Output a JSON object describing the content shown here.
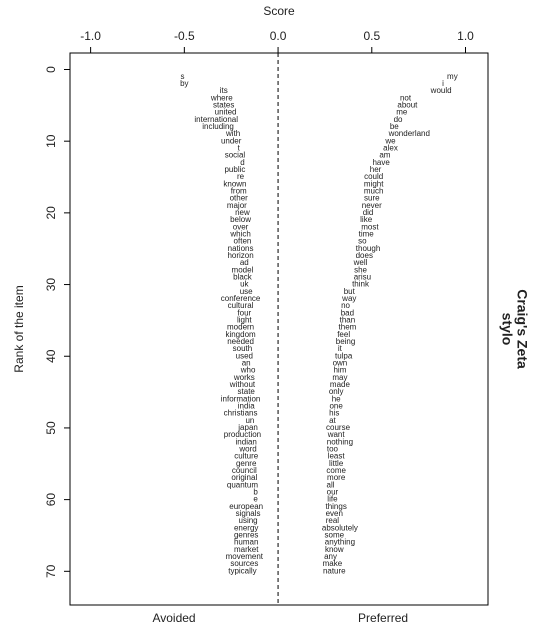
{
  "chart_data": {
    "type": "word-scatter",
    "title": "Craig's Zeta",
    "caption": "stylo",
    "xlabel": "Score",
    "ylabel": "Rank of the item",
    "xlim": [
      -1.11,
      1.12
    ],
    "ylim": [
      -2.3,
      74.7
    ],
    "y_reversed": true,
    "zero_line": true,
    "xticks": [
      {
        "value": -1,
        "label": "-1.0"
      },
      -0.5,
      {
        "value": 0,
        "label": "0.0"
      },
      0.5,
      {
        "value": 1,
        "label": "1.0"
      }
    ],
    "yticks": [
      0,
      10,
      20,
      30,
      40,
      50,
      60,
      70
    ],
    "series": [
      {
        "name": "Avoided",
        "color": "#000000",
        "words": [
          "s",
          "by",
          "its",
          "where",
          "states",
          "united",
          "international",
          "including",
          "with",
          "under",
          "t",
          "social",
          "d",
          "public",
          "re",
          "known",
          "from",
          "other",
          "major",
          "new",
          "below",
          "over",
          "which",
          "often",
          "nations",
          "horizon",
          "ad",
          "model",
          "black",
          "uk",
          "use",
          "conference",
          "cultural",
          "four",
          "light",
          "modern",
          "kingdom",
          "needed",
          "south",
          "used",
          "an",
          "who",
          "works",
          "without",
          "state",
          "information",
          "india",
          "christians",
          "un",
          "japan",
          "production",
          "indian",
          "word",
          "culture",
          "genre",
          "council",
          "original",
          "quantum",
          "b",
          "e",
          "european",
          "signals",
          "using",
          "energy",
          "genres",
          "human",
          "market",
          "movement",
          "sources",
          "typically"
        ],
        "x": [
          -0.51,
          -0.5,
          -0.29,
          -0.3,
          -0.29,
          -0.28,
          -0.33,
          -0.32,
          -0.24,
          -0.25,
          -0.21,
          -0.23,
          -0.19,
          -0.23,
          -0.2,
          -0.23,
          -0.21,
          -0.21,
          -0.22,
          -0.19,
          -0.2,
          -0.2,
          -0.2,
          -0.19,
          -0.2,
          -0.2,
          -0.18,
          -0.19,
          -0.19,
          -0.18,
          -0.17,
          -0.2,
          -0.2,
          -0.18,
          -0.18,
          -0.2,
          -0.2,
          -0.2,
          -0.19,
          -0.18,
          -0.17,
          -0.16,
          -0.18,
          -0.19,
          -0.17,
          -0.2,
          -0.17,
          -0.2,
          -0.15,
          -0.16,
          -0.19,
          -0.17,
          -0.16,
          -0.17,
          -0.17,
          -0.18,
          -0.18,
          -0.19,
          -0.12,
          -0.12,
          -0.17,
          -0.16,
          -0.16,
          -0.17,
          -0.17,
          -0.17,
          -0.17,
          -0.18,
          -0.18,
          -0.19
        ],
        "y": [
          1,
          2,
          3,
          4,
          5,
          6,
          7,
          8,
          9,
          10,
          11,
          12,
          13,
          14,
          15,
          16,
          17,
          18,
          19,
          20,
          21,
          22,
          23,
          24,
          25,
          26,
          27,
          28,
          29,
          30,
          31,
          32,
          33,
          34,
          35,
          36,
          37,
          38,
          39,
          40,
          41,
          42,
          43,
          44,
          45,
          46,
          47,
          48,
          49,
          50,
          51,
          52,
          53,
          54,
          55,
          56,
          57,
          58,
          59,
          60,
          61,
          62,
          63,
          64,
          65,
          66,
          67,
          68,
          69,
          70
        ]
      },
      {
        "name": "Preferred",
        "color": "#000000",
        "words": [
          "my",
          "i",
          "would",
          "not",
          "about",
          "me",
          "do",
          "be",
          "wonderland",
          "we",
          "alex",
          "am",
          "have",
          "her",
          "could",
          "might",
          "much",
          "sure",
          "never",
          "did",
          "like",
          "most",
          "time",
          "so",
          "though",
          "does",
          "well",
          "she",
          "arisu",
          "think",
          "but",
          "way",
          "no",
          "bad",
          "than",
          "them",
          "feel",
          "being",
          "it",
          "tulpa",
          "own",
          "him",
          "may",
          "made",
          "only",
          "he",
          "one",
          "his",
          "at",
          "course",
          "want",
          "nothing",
          "too",
          "least",
          "little",
          "come",
          "more",
          "all",
          "our",
          "life",
          "things",
          "even",
          "real",
          "absolutely",
          "some",
          "anything",
          "know",
          "any",
          "make",
          "nature"
        ],
        "x": [
          0.93,
          0.88,
          0.87,
          0.68,
          0.69,
          0.66,
          0.64,
          0.62,
          0.7,
          0.6,
          0.6,
          0.57,
          0.55,
          0.52,
          0.51,
          0.51,
          0.51,
          0.5,
          0.5,
          0.48,
          0.47,
          0.49,
          0.47,
          0.45,
          0.48,
          0.46,
          0.44,
          0.44,
          0.45,
          0.44,
          0.38,
          0.38,
          0.36,
          0.37,
          0.37,
          0.37,
          0.35,
          0.36,
          0.33,
          0.35,
          0.33,
          0.33,
          0.33,
          0.33,
          0.31,
          0.31,
          0.31,
          0.3,
          0.29,
          0.32,
          0.31,
          0.33,
          0.29,
          0.31,
          0.31,
          0.31,
          0.31,
          0.28,
          0.29,
          0.29,
          0.31,
          0.3,
          0.29,
          0.33,
          0.3,
          0.33,
          0.3,
          0.28,
          0.29,
          0.3
        ],
        "y": [
          1,
          2,
          3,
          4,
          5,
          6,
          7,
          8,
          9,
          10,
          11,
          12,
          13,
          14,
          15,
          16,
          17,
          18,
          19,
          20,
          21,
          22,
          23,
          24,
          25,
          26,
          27,
          28,
          29,
          30,
          31,
          32,
          33,
          34,
          35,
          36,
          37,
          38,
          39,
          40,
          41,
          42,
          43,
          44,
          45,
          46,
          47,
          48,
          49,
          50,
          51,
          52,
          53,
          54,
          55,
          56,
          57,
          58,
          59,
          60,
          61,
          62,
          63,
          64,
          65,
          66,
          67,
          68,
          69,
          70
        ]
      }
    ]
  }
}
